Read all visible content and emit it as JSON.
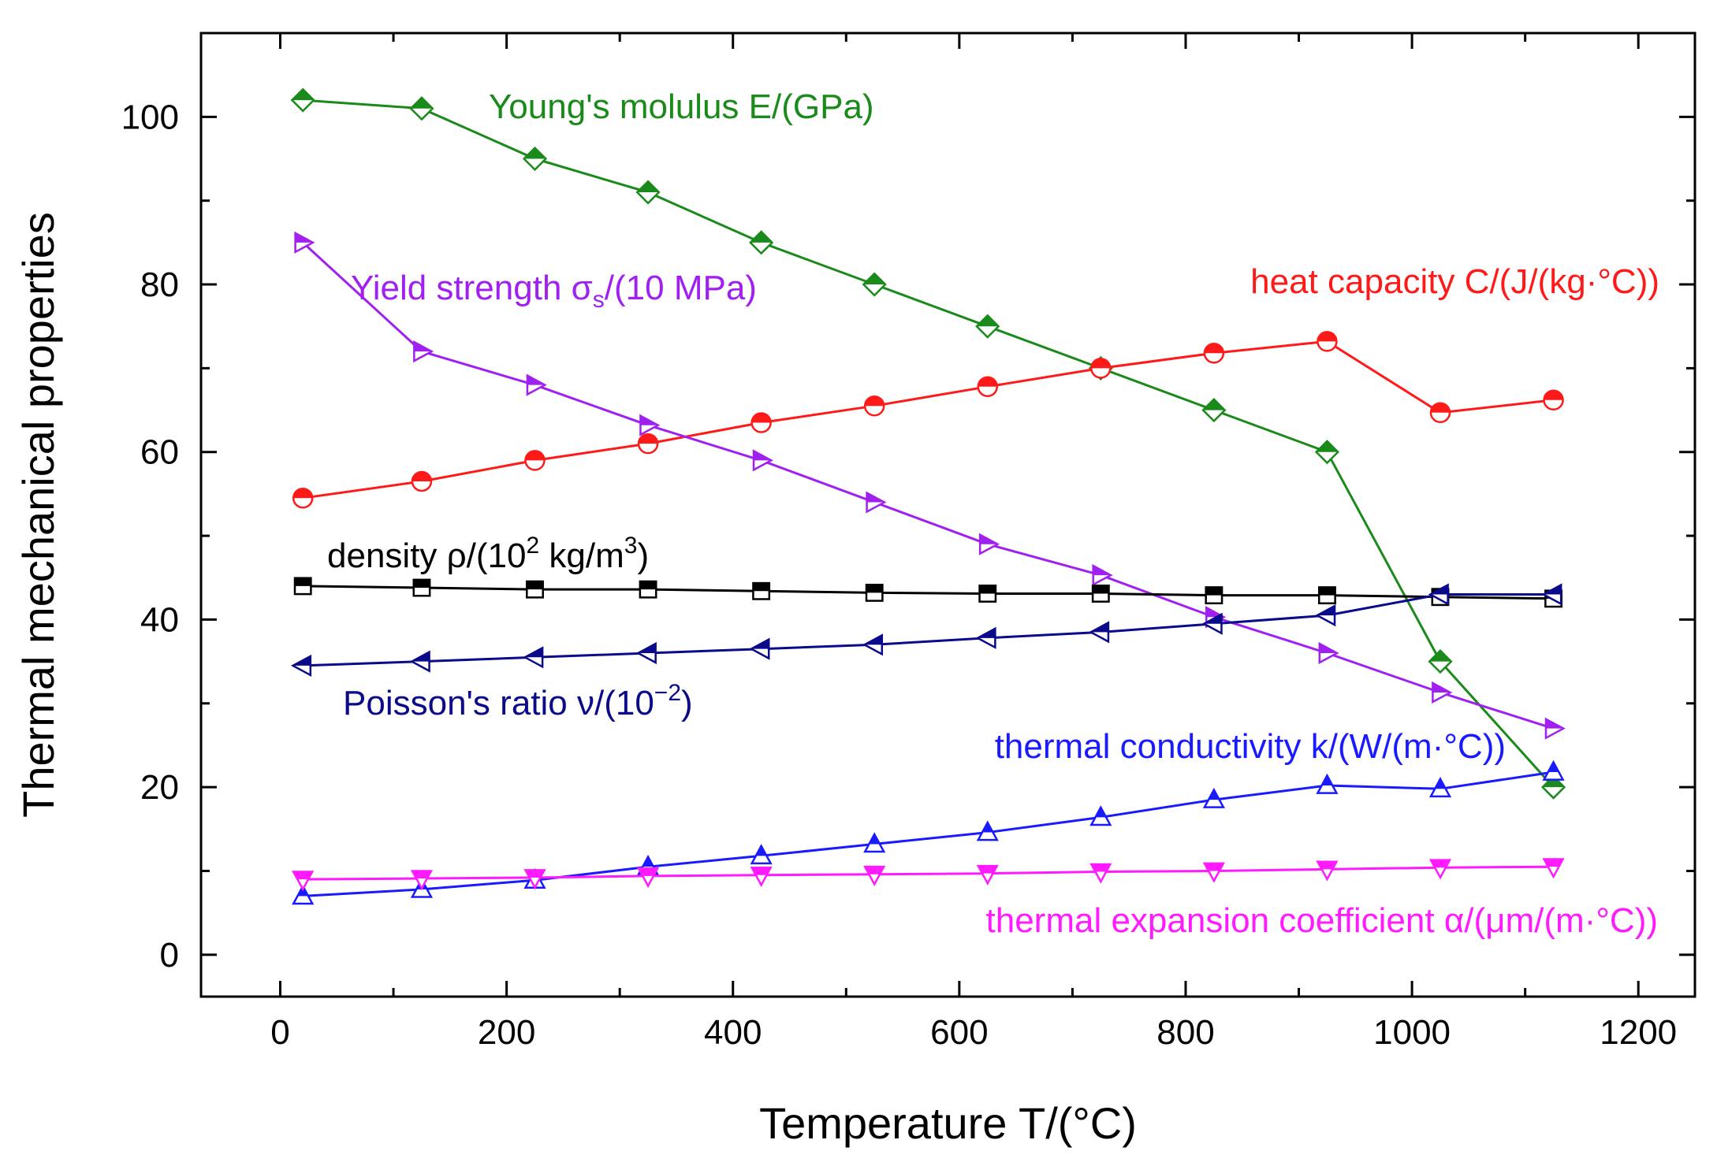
{
  "chart_data": {
    "type": "line",
    "title": "",
    "xlabel": "Temperature T/(°C)",
    "ylabel": "Thermal mechanical properties",
    "xlim": [
      -70,
      1250
    ],
    "ylim": [
      -5,
      110
    ],
    "x_ticks": [
      0,
      200,
      400,
      600,
      800,
      1000,
      1200
    ],
    "x_tick_labels": [
      "0",
      "200",
      "400",
      "600",
      "800",
      "1000",
      "1200"
    ],
    "y_ticks": [
      0,
      20,
      40,
      60,
      80,
      100
    ],
    "y_tick_labels": [
      "0",
      "20",
      "40",
      "60",
      "80",
      "100"
    ],
    "grid": false,
    "legend": "inline labels near each series",
    "x": [
      20,
      125,
      225,
      325,
      425,
      525,
      625,
      725,
      825,
      925,
      1025,
      1125
    ],
    "series": [
      {
        "name": "Young's molulus E/(GPa)",
        "label_parts": [
          {
            "text": "Young's molulus E/(GPa)"
          }
        ],
        "color": "#1a8a1a",
        "marker": "diamond",
        "values": [
          102,
          101,
          95,
          91,
          85,
          80,
          75,
          70,
          65,
          60,
          35,
          20
        ]
      },
      {
        "name": "heat capacity C/(J/(kg·°C))",
        "label_parts": [
          {
            "text": "heat capacity C/(J/(kg·°C))"
          }
        ],
        "color": "#ff1a1a",
        "marker": "circle",
        "values": [
          54.5,
          56.5,
          59,
          61,
          63.5,
          65.5,
          67.8,
          70,
          71.8,
          73.2,
          64.7,
          66.2
        ]
      },
      {
        "name": "Yield strength σs/(10 MPa)",
        "label_parts": [
          {
            "text": "Yield strength σ"
          },
          {
            "text": "s",
            "sub": true
          },
          {
            "text": "/(10 MPa)"
          }
        ],
        "color": "#a020f0",
        "marker": "triangle-right",
        "values": [
          85,
          72,
          68,
          63.2,
          59,
          54,
          49,
          45.3,
          40.3,
          36,
          31.3,
          27
        ]
      },
      {
        "name": "density ρ/(10² kg/m³)",
        "label_parts": [
          {
            "text": "density ρ/(10"
          },
          {
            "text": "2",
            "sup": true
          },
          {
            "text": " kg/m"
          },
          {
            "text": "3",
            "sup": true
          },
          {
            "text": ")"
          }
        ],
        "color": "#000000",
        "marker": "square",
        "values": [
          44,
          43.8,
          43.6,
          43.6,
          43.4,
          43.2,
          43.1,
          43.1,
          42.9,
          42.9,
          42.7,
          42.5
        ]
      },
      {
        "name": "Poisson's ratio ν/(10⁻²)",
        "label_parts": [
          {
            "text": "Poisson's ratio ν/(10"
          },
          {
            "text": "−2",
            "sup": true
          },
          {
            "text": ")"
          }
        ],
        "color": "#0a0a8a",
        "marker": "triangle-left",
        "values": [
          34.5,
          35,
          35.5,
          36,
          36.5,
          37,
          37.8,
          38.5,
          39.5,
          40.5,
          43,
          43
        ]
      },
      {
        "name": "thermal conductivity k/(W/(m·°C))",
        "label_parts": [
          {
            "text": "thermal conductivity k/(W/(m·°C))"
          }
        ],
        "color": "#1a1aff",
        "marker": "triangle-up",
        "values": [
          7,
          7.8,
          8.9,
          10.5,
          11.8,
          13.2,
          14.6,
          16.4,
          18.5,
          20.2,
          19.8,
          21.8
        ]
      },
      {
        "name": "thermal expansion coefficient α/(μm/(m·°C))",
        "label_parts": [
          {
            "text": "thermal expansion coefficient α/(μm/(m·°C))"
          }
        ],
        "color": "#ff1aff",
        "marker": "triangle-down",
        "values": [
          9,
          9.1,
          9.2,
          9.4,
          9.5,
          9.6,
          9.7,
          9.9,
          10,
          10.2,
          10.4,
          10.5
        ]
      }
    ]
  }
}
